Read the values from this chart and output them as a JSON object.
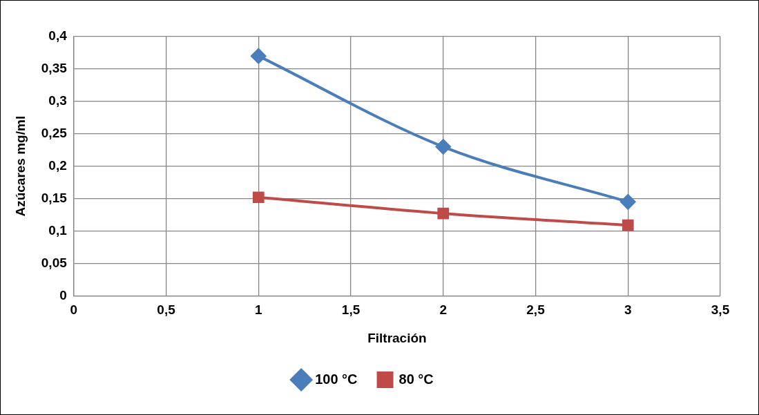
{
  "chart_data": {
    "type": "line",
    "xlabel": "Filtración",
    "ylabel": "Azúcares mg/ml",
    "x": [
      1,
      2,
      3
    ],
    "series": [
      {
        "name": "100 °C",
        "color": "#4a7ebb",
        "marker": "diamond",
        "values": [
          0.37,
          0.23,
          0.145
        ]
      },
      {
        "name": "80 °C",
        "color": "#be4b48",
        "marker": "square",
        "values": [
          0.152,
          0.127,
          0.109
        ]
      }
    ],
    "xlim": [
      0,
      3.5
    ],
    "xticks": [
      0,
      {
        "value": 0.5,
        "label": "0,5"
      },
      1,
      {
        "value": 1.5,
        "label": "1,5"
      },
      2,
      {
        "value": 2.5,
        "label": "2,5"
      },
      3,
      {
        "value": 3.5,
        "label": "3,5"
      }
    ],
    "ylim": [
      0,
      0.4
    ],
    "yticks": [
      0,
      {
        "value": 0.05,
        "label": "0,05"
      },
      {
        "value": 0.1,
        "label": "0,1"
      },
      {
        "value": 0.15,
        "label": "0,15"
      },
      {
        "value": 0.2,
        "label": "0,2"
      },
      {
        "value": 0.25,
        "label": "0,25"
      },
      {
        "value": 0.3,
        "label": "0,3"
      },
      {
        "value": 0.35,
        "label": "0,35"
      },
      {
        "value": 0.4,
        "label": "0,4"
      }
    ],
    "grid": true,
    "legend": "bottom"
  }
}
